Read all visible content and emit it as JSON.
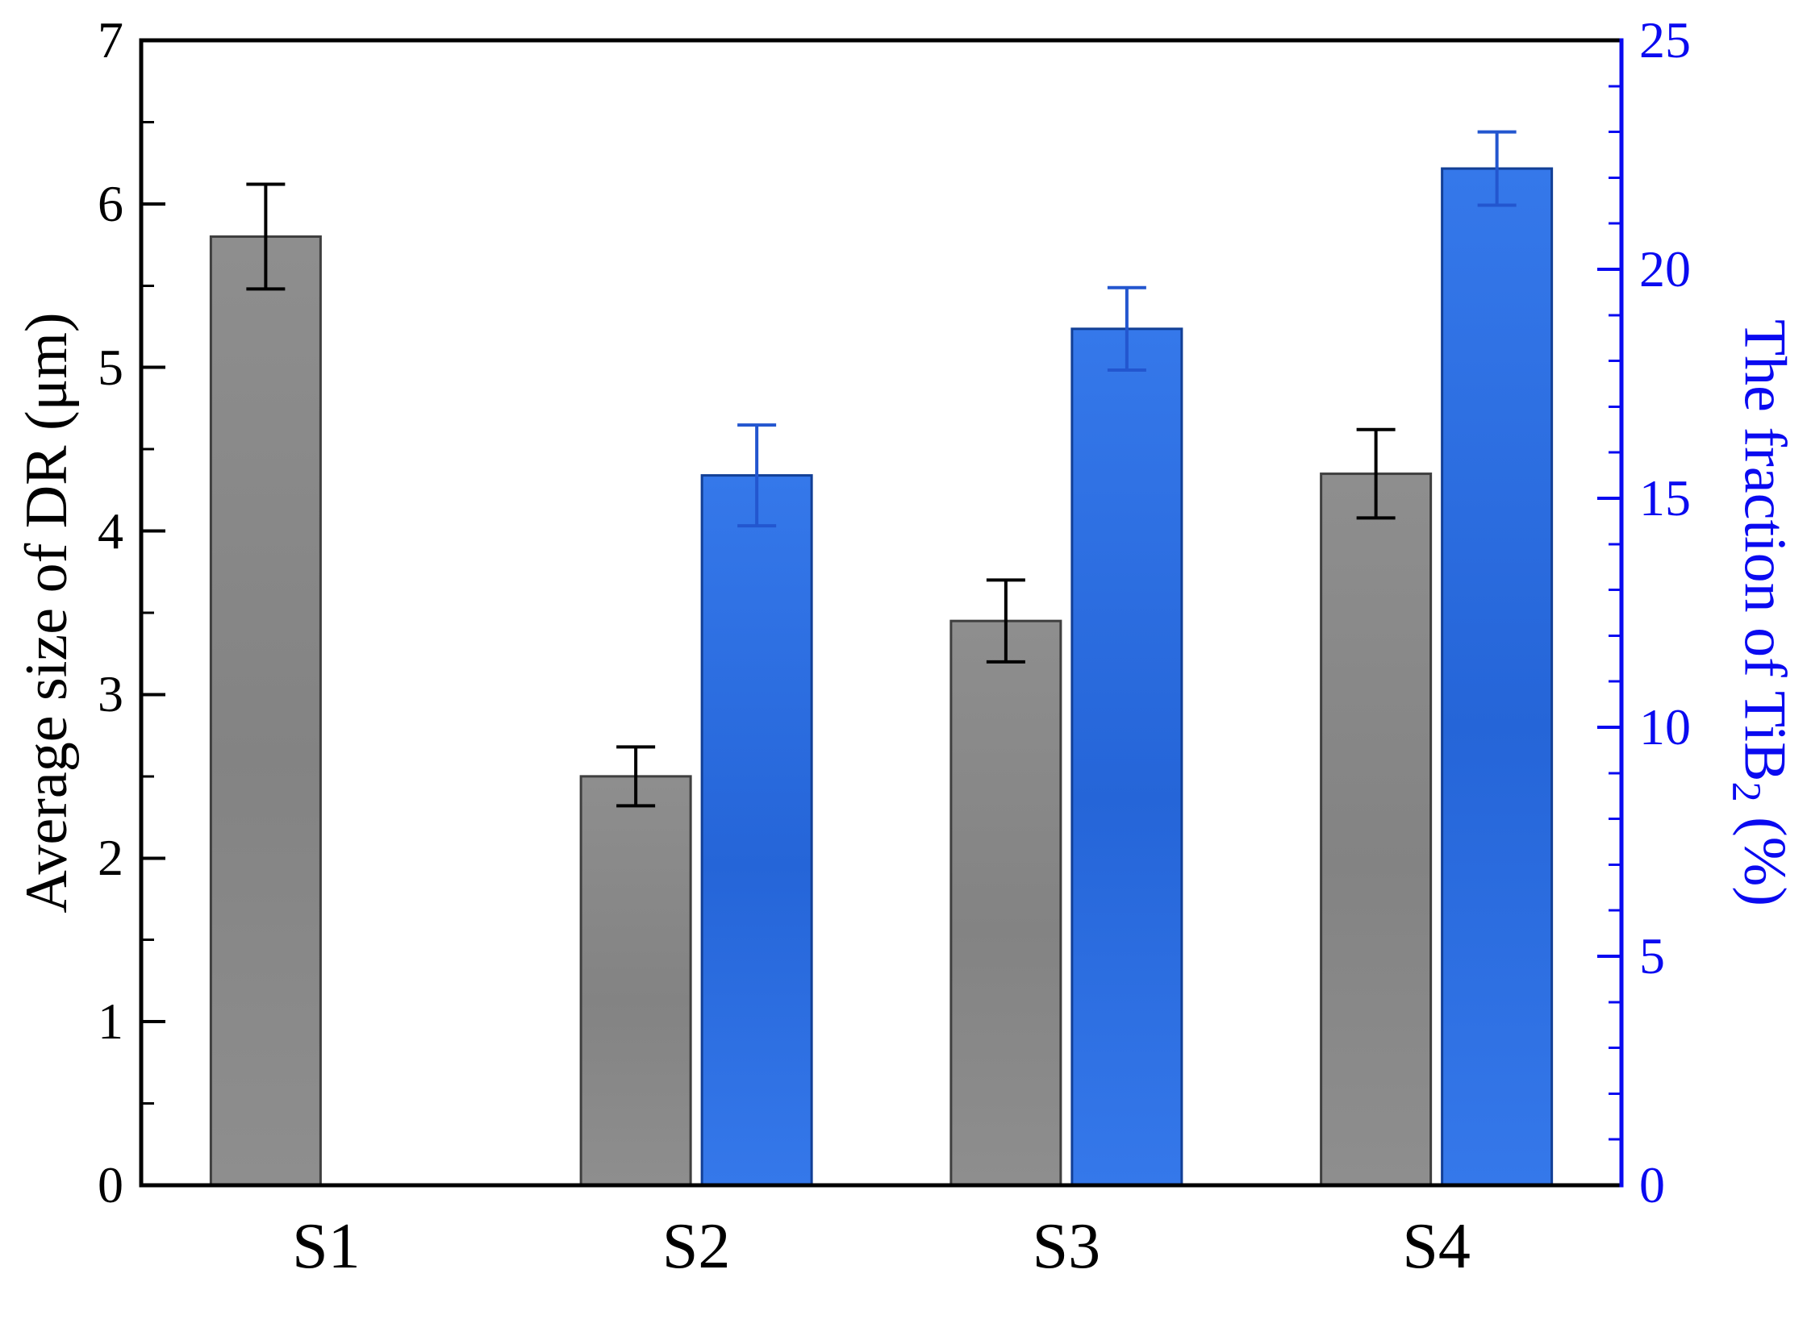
{
  "figure": {
    "background": "#ffffff"
  },
  "chart_data": {
    "type": "bar",
    "categories": [
      "S1",
      "S2",
      "S3",
      "S4"
    ],
    "series": [
      {
        "name": "Average size of DR",
        "axis": "left",
        "bar_fill": "#838383",
        "bar_fill_light": "#8e8e8e",
        "bar_edge": "#3f3f3f",
        "error_color": "#000000",
        "values": [
          5.8,
          2.5,
          3.45,
          4.35
        ],
        "errors": [
          0.32,
          0.18,
          0.25,
          0.27
        ]
      },
      {
        "name": "The fraction of TiB2",
        "axis": "right",
        "bar_fill": "#2565d8",
        "bar_fill_light": "#3578ea",
        "bar_edge": "#123f96",
        "error_color": "#2356cf",
        "values": [
          null,
          15.5,
          18.7,
          22.2
        ],
        "errors": [
          null,
          1.1,
          0.9,
          0.8
        ]
      }
    ],
    "left_axis": {
      "title": "Average size of DR (μm)",
      "min": 0,
      "max": 7,
      "major_ticks": [
        0,
        1,
        2,
        3,
        4,
        5,
        6,
        7
      ],
      "minor_step": 0.5,
      "color": "#000000"
    },
    "right_axis": {
      "title_pre": "The fraction of TiB",
      "title_sub": "2",
      "title_post": " (%)",
      "min": 0,
      "max": 25,
      "major_ticks": [
        0,
        5,
        10,
        15,
        20,
        25
      ],
      "minor_step": 1,
      "color": "#0a0af0"
    },
    "grid": "off",
    "legend": "none"
  }
}
